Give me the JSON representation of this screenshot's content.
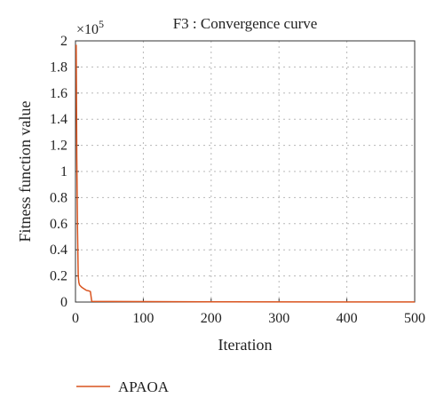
{
  "chart_data": {
    "type": "line",
    "title": "F3 : Convergence curve",
    "xlabel": "Iteration",
    "ylabel": "Fitness function value",
    "y_multiplier_label": "×10",
    "y_multiplier_exponent": "5",
    "xlim": [
      0,
      500
    ],
    "ylim": [
      0,
      2
    ],
    "x_ticks": [
      "0",
      "100",
      "200",
      "300",
      "400",
      "500"
    ],
    "y_ticks": [
      "0",
      "0.2",
      "0.4",
      "0.6",
      "0.8",
      "1",
      "1.2",
      "1.4",
      "1.6",
      "1.8",
      "2"
    ],
    "grid": true,
    "legend_position": "bottom-left",
    "series": [
      {
        "name": "APAOA",
        "color": "#d9531e",
        "x": [
          1,
          2,
          3,
          4,
          5,
          6,
          8,
          10,
          13,
          16,
          20,
          22,
          24,
          200,
          500
        ],
        "y": [
          1.97,
          1.1,
          0.55,
          0.2,
          0.15,
          0.13,
          0.12,
          0.11,
          0.1,
          0.09,
          0.085,
          0.08,
          0.005,
          0.002,
          0.001
        ]
      }
    ]
  }
}
